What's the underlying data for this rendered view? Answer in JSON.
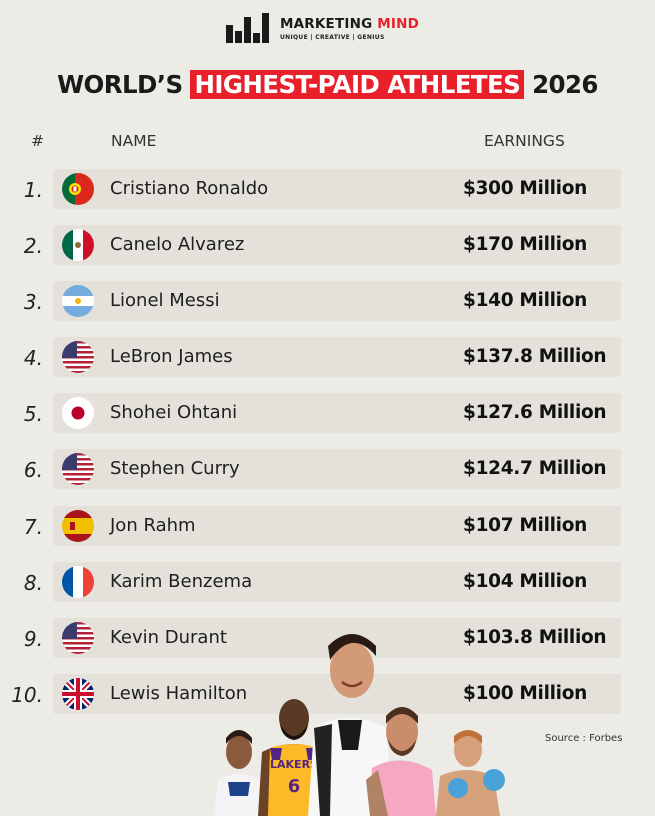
{
  "brand": {
    "name_part1": "MARKETING",
    "name_part2": "MIND",
    "tagline": "UNIQUE | CREATIVE | GENIUS"
  },
  "title": {
    "prefix": "WORLD’S",
    "highlight": "HIGHEST-PAID ATHLETES",
    "suffix": "2026",
    "highlight_color": "#e8202a"
  },
  "headers": {
    "rank": "#",
    "name": "NAME",
    "earnings": "EARNINGS"
  },
  "athletes": [
    {
      "rank": "1.",
      "name": "Cristiano Ronaldo",
      "earnings": "$300 Million",
      "flag": "portugal-flag-icon"
    },
    {
      "rank": "2.",
      "name": "Canelo Alvarez",
      "earnings": "$170 Million",
      "flag": "mexico-flag-icon"
    },
    {
      "rank": "3.",
      "name": "Lionel Messi",
      "earnings": "$140 Million",
      "flag": "argentina-flag-icon"
    },
    {
      "rank": "4.",
      "name": "LeBron James",
      "earnings": "$137.8 Million",
      "flag": "usa-flag-icon"
    },
    {
      "rank": "5.",
      "name": "Shohei Ohtani",
      "earnings": "$127.6 Million",
      "flag": "japan-flag-icon"
    },
    {
      "rank": "6.",
      "name": "Stephen Curry",
      "earnings": "$124.7 Million",
      "flag": "usa-flag-icon"
    },
    {
      "rank": "7.",
      "name": "Jon Rahm",
      "earnings": "$107 Million",
      "flag": "spain-flag-icon"
    },
    {
      "rank": "8.",
      "name": "Karim Benzema",
      "earnings": "$104 Million",
      "flag": "france-flag-icon"
    },
    {
      "rank": "9.",
      "name": "Kevin Durant",
      "earnings": "$103.8 Million",
      "flag": "usa-flag-icon"
    },
    {
      "rank": "10.",
      "name": "Lewis Hamilton",
      "earnings": "$100 Million",
      "flag": "uk-flag-icon"
    }
  ],
  "source": "Source : Forbes",
  "jersey": {
    "team": "LAKERS",
    "number": "6"
  }
}
